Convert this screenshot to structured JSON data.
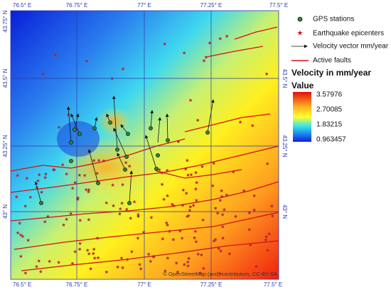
{
  "map": {
    "lon_labels": [
      "76.5° E",
      "76.75° E",
      "77° E",
      "77.25° E",
      "77.5° E"
    ],
    "lat_labels": [
      "43.75° N",
      "43.5° N",
      "43.25° N",
      "43° N"
    ],
    "attribution": "© OpenStreetMap (and) contributors, CC-BY-SA"
  },
  "legend": {
    "items": [
      "GPS stations",
      "Earthquake epicenters",
      "Velocity vector mm/year",
      "Active faults"
    ],
    "title": "Velocity in mm/year",
    "subtitle": "Value",
    "scale": [
      "3.57976",
      "2.70085",
      "1.83215",
      "0.963457"
    ]
  }
}
